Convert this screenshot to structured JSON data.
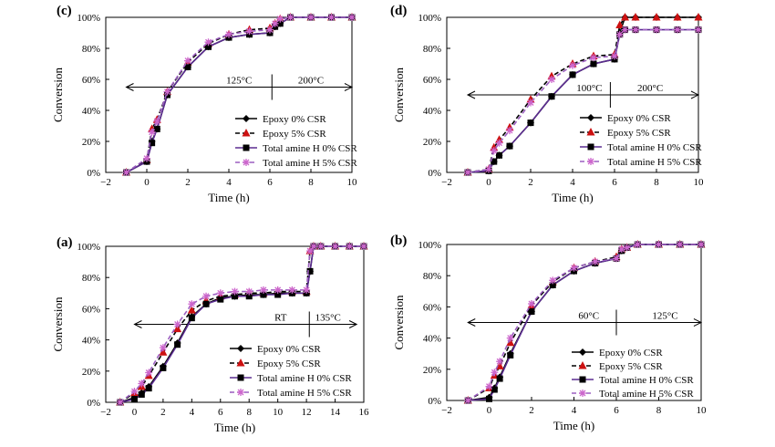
{
  "chart_data": [
    {
      "id": "c",
      "type": "line",
      "panel_label": "(c)",
      "xlabel": "Time (h)",
      "ylabel": "Conversion",
      "xlim": [
        -2,
        10
      ],
      "ylim": [
        0,
        100
      ],
      "xticks": [
        -2,
        0,
        2,
        4,
        6,
        8,
        10
      ],
      "xtick_labels": [
        "−2",
        "0",
        "2",
        "4",
        "6",
        "8",
        "10"
      ],
      "yticks": [
        0,
        20,
        40,
        60,
        80,
        100
      ],
      "ytick_labels": [
        "0%",
        "20%",
        "40%",
        "60%",
        "80%",
        "100%"
      ],
      "annotation": {
        "y": 55,
        "x_start": -1,
        "x_end": 10,
        "divider_x": 6.1,
        "left_text": "125°C",
        "right_text": "200°C",
        "left_text_x": 4.5,
        "right_text_x": 8
      }
    },
    {
      "id": "d",
      "type": "line",
      "panel_label": "(d)",
      "xlabel": "Time (h)",
      "ylabel": "Conversion",
      "xlim": [
        -2,
        10
      ],
      "ylim": [
        0,
        100
      ],
      "xticks": [
        -2,
        0,
        2,
        4,
        6,
        8,
        10
      ],
      "xtick_labels": [
        "−2",
        "0",
        "2",
        "4",
        "6",
        "8",
        "10"
      ],
      "yticks": [
        0,
        20,
        40,
        60,
        80,
        100
      ],
      "ytick_labels": [
        "0%",
        "20%",
        "40%",
        "60%",
        "80%",
        "100%"
      ],
      "annotation": {
        "y": 50,
        "x_start": -1,
        "x_end": 10,
        "divider_x": 5.8,
        "left_text": "100°C",
        "right_text": "200°C",
        "left_text_x": 4.8,
        "right_text_x": 7.7
      }
    },
    {
      "id": "a",
      "type": "line",
      "panel_label": "(a)",
      "xlabel": "Time (h)",
      "ylabel": "Conversion",
      "xlim": [
        -2,
        16
      ],
      "ylim": [
        0,
        100
      ],
      "xticks": [
        -2,
        0,
        2,
        4,
        6,
        8,
        10,
        12,
        14,
        16
      ],
      "xtick_labels": [
        "−2",
        "0",
        "2",
        "4",
        "6",
        "8",
        "10",
        "12",
        "14",
        "16"
      ],
      "yticks": [
        0,
        20,
        40,
        60,
        80,
        100
      ],
      "ytick_labels": [
        "0%",
        "20%",
        "40%",
        "60%",
        "80%",
        "100%"
      ],
      "annotation": {
        "y": 50,
        "x_start": 0,
        "x_end": 15.5,
        "divider_x": 12.2,
        "left_text": "RT",
        "right_text": "135°C",
        "left_text_x": 10.2,
        "right_text_x": 13.5
      }
    },
    {
      "id": "b",
      "type": "line",
      "panel_label": "(b)",
      "xlabel": "Time (h)",
      "ylabel": "Conversion",
      "xlim": [
        -2,
        10
      ],
      "ylim": [
        0,
        100
      ],
      "xticks": [
        -2,
        0,
        2,
        4,
        6,
        8,
        10
      ],
      "xtick_labels": [
        "−2",
        "0",
        "2",
        "4",
        "6",
        "8",
        "10"
      ],
      "yticks": [
        0,
        20,
        40,
        60,
        80,
        100
      ],
      "ytick_labels": [
        "0%",
        "20%",
        "40%",
        "60%",
        "80%",
        "100%"
      ],
      "annotation": {
        "y": 50,
        "x_start": -1,
        "x_end": 10,
        "divider_x": 6.0,
        "left_text": "60°C",
        "right_text": "125°C",
        "left_text_x": 4.7,
        "right_text_x": 8.3
      }
    }
  ],
  "legend": {
    "entries": [
      {
        "label": "Epoxy 0% CSR",
        "color": "#000000",
        "dash": "solid",
        "marker": "diamond"
      },
      {
        "label": "Epoxy 5% CSR",
        "color": "#cc1111",
        "dash": "dashed",
        "marker": "triangle"
      },
      {
        "label": "Total amine H 0% CSR",
        "color": "#5c2d91",
        "dash": "solid",
        "marker": "square"
      },
      {
        "label": "Total amine H 5% CSR",
        "color": "#9c5fc0",
        "dash": "dashed",
        "marker": "star"
      }
    ]
  },
  "series_styles": {
    "line_colors": [
      "#000000",
      "#000000",
      "#5c2d91",
      "#9c5fc0"
    ],
    "marker_colors": [
      "#000000",
      "#cc1111",
      "#000000",
      "#cc66cc"
    ]
  },
  "series_data": {
    "c": [
      {
        "x": [
          -1,
          0,
          0.25,
          0.5,
          1,
          2,
          3,
          4,
          5,
          6,
          6.25,
          6.5,
          7,
          8,
          9,
          10
        ],
        "y": [
          0,
          7,
          20,
          28,
          50,
          68,
          81,
          87,
          89,
          90,
          94,
          96,
          100,
          100,
          100,
          100
        ]
      },
      {
        "x": [
          -1,
          0,
          0.25,
          0.5,
          1,
          2,
          3,
          4,
          5,
          6,
          6.25,
          6.5,
          7,
          8,
          9,
          10
        ],
        "y": [
          0,
          8,
          28,
          34,
          52,
          71,
          83,
          89,
          92,
          93,
          96,
          99,
          100,
          100,
          100,
          100
        ]
      },
      {
        "x": [
          -1,
          0,
          0.25,
          0.5,
          1,
          2,
          3,
          4,
          5,
          6,
          6.25,
          6.5,
          7,
          8,
          9,
          10
        ],
        "y": [
          0,
          7,
          19,
          28,
          50,
          68,
          81,
          87,
          89,
          90,
          94,
          96,
          100,
          100,
          100,
          100
        ]
      },
      {
        "x": [
          -1,
          0,
          0.25,
          0.5,
          1,
          2,
          3,
          4,
          5,
          6,
          6.25,
          6.5,
          7,
          8,
          9,
          10
        ],
        "y": [
          0,
          9,
          26,
          33,
          52,
          72,
          84,
          89,
          91,
          92,
          96,
          99,
          100,
          100,
          100,
          100
        ]
      }
    ],
    "d": [
      {
        "x": [
          -1,
          0,
          0.25,
          0.5,
          1,
          2,
          3,
          4,
          5,
          6,
          6.25,
          6.5,
          7,
          8,
          9,
          10
        ],
        "y": [
          0,
          1,
          7,
          11,
          17,
          32,
          49,
          63,
          70,
          73,
          90,
          100,
          100,
          100,
          100,
          100
        ]
      },
      {
        "x": [
          -1,
          0,
          0.25,
          0.5,
          1,
          2,
          3,
          4,
          5,
          6,
          6.25,
          6.5,
          7,
          8,
          9,
          10
        ],
        "y": [
          0,
          2,
          16,
          21,
          29,
          47,
          62,
          70,
          75,
          76,
          95,
          100,
          100,
          100,
          100,
          100
        ]
      },
      {
        "x": [
          -1,
          0,
          0.25,
          0.5,
          1,
          2,
          3,
          4,
          5,
          6,
          6.25,
          6.5,
          7,
          8,
          9,
          10
        ],
        "y": [
          0,
          1,
          7,
          11,
          17,
          32,
          49,
          63,
          70,
          73,
          89,
          92,
          92,
          92,
          92,
          92
        ]
      },
      {
        "x": [
          -1,
          0,
          0.25,
          0.5,
          1,
          2,
          3,
          4,
          5,
          6,
          6.25,
          6.5,
          7,
          8,
          9,
          10
        ],
        "y": [
          0,
          2,
          14,
          19,
          27,
          45,
          60,
          69,
          74,
          75,
          89,
          92,
          92,
          92,
          92,
          92
        ]
      }
    ],
    "a": [
      {
        "x": [
          -1,
          0,
          0.5,
          1,
          2,
          3,
          4,
          5,
          6,
          7,
          8,
          9,
          10,
          11,
          12,
          12.25,
          12.5,
          13,
          14,
          15,
          16
        ],
        "y": [
          0,
          3,
          6,
          10,
          23,
          38,
          55,
          63,
          67,
          68,
          69,
          69,
          70,
          70,
          70,
          84,
          100,
          100,
          100,
          100,
          100
        ]
      },
      {
        "x": [
          -1,
          0,
          0.5,
          1,
          2,
          3,
          4,
          5,
          6,
          7,
          8,
          9,
          10,
          11,
          12,
          12.25,
          12.5,
          13,
          14,
          15,
          16
        ],
        "y": [
          0,
          6,
          10,
          17,
          32,
          47,
          59,
          65,
          68,
          69,
          70,
          70,
          71,
          71,
          71,
          97,
          100,
          100,
          100,
          100,
          100
        ]
      },
      {
        "x": [
          -1,
          0,
          0.5,
          1,
          2,
          3,
          4,
          5,
          6,
          7,
          8,
          9,
          10,
          11,
          12,
          12.25,
          12.5,
          13,
          14,
          15,
          16
        ],
        "y": [
          0,
          2,
          5,
          9,
          22,
          37,
          54,
          63,
          66,
          68,
          68,
          69,
          69,
          70,
          70,
          84,
          100,
          100,
          100,
          100,
          100
        ]
      },
      {
        "x": [
          -1,
          0,
          0.5,
          1,
          2,
          3,
          4,
          5,
          6,
          7,
          8,
          9,
          10,
          11,
          12,
          12.25,
          12.5,
          13,
          14,
          15,
          16
        ],
        "y": [
          0,
          7,
          12,
          19,
          35,
          50,
          63,
          68,
          70,
          71,
          71,
          72,
          72,
          72,
          72,
          97,
          100,
          100,
          100,
          100,
          100
        ]
      }
    ],
    "b": [
      {
        "x": [
          -1,
          0,
          0.25,
          0.5,
          1,
          2,
          3,
          4,
          5,
          6,
          6.25,
          6.5,
          7,
          8,
          9,
          10
        ],
        "y": [
          0,
          2,
          8,
          15,
          30,
          57,
          74,
          83,
          88,
          91,
          96,
          98,
          100,
          100,
          100,
          100
        ]
      },
      {
        "x": [
          -1,
          0,
          0.25,
          0.5,
          1,
          2,
          3,
          4,
          5,
          6,
          6.25,
          6.5,
          7,
          8,
          9,
          10
        ],
        "y": [
          0,
          8,
          16,
          22,
          37,
          61,
          76,
          85,
          89,
          92,
          97,
          98,
          100,
          100,
          100,
          100
        ]
      },
      {
        "x": [
          -1,
          0,
          0.25,
          0.5,
          1,
          2,
          3,
          4,
          5,
          6,
          6.25,
          6.5,
          7,
          8,
          9,
          10
        ],
        "y": [
          0,
          1,
          7,
          14,
          29,
          57,
          74,
          83,
          88,
          91,
          96,
          98,
          100,
          100,
          100,
          100
        ]
      },
      {
        "x": [
          -1,
          0,
          0.25,
          0.5,
          1,
          2,
          3,
          4,
          5,
          6,
          6.25,
          6.5,
          7,
          8,
          9,
          10
        ],
        "y": [
          0,
          9,
          18,
          25,
          40,
          62,
          77,
          85,
          89,
          91,
          97,
          98,
          100,
          100,
          100,
          100
        ]
      }
    ]
  }
}
